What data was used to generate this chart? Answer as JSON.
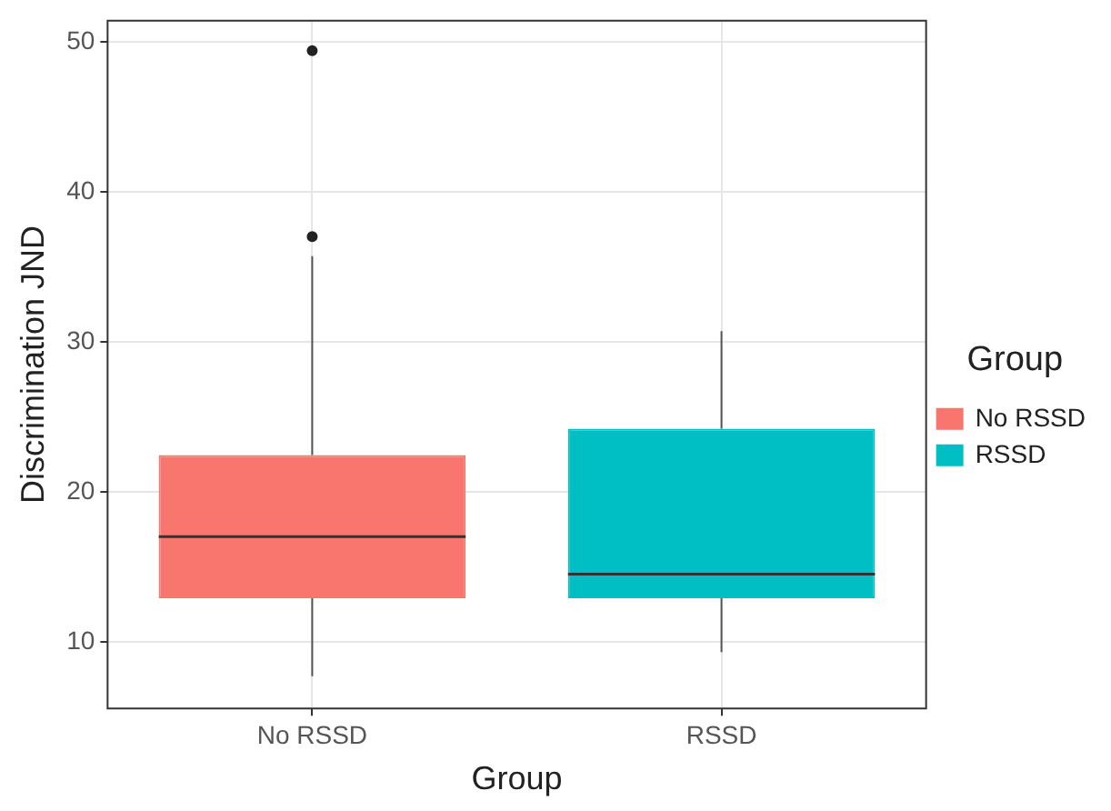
{
  "chart_data": {
    "type": "box",
    "xlabel": "Group",
    "ylabel": "Discrimination JND",
    "legend_title": "Group",
    "legend": "right",
    "grid": true,
    "categories": [
      "No RSSD",
      "RSSD"
    ],
    "series": [
      {
        "name": "No RSSD",
        "color": "#f8766d",
        "boxes": [
          {
            "low": 7.7,
            "q1": 12.9,
            "median": 17.0,
            "q3": 22.45,
            "high": 35.7,
            "outliers": [
              37.0,
              49.4
            ]
          },
          null
        ]
      },
      {
        "name": "RSSD",
        "color": "#00bfc4",
        "boxes": [
          null,
          {
            "low": 9.3,
            "q1": 12.9,
            "median": 14.5,
            "q3": 24.2,
            "high": 30.7
          }
        ]
      }
    ],
    "ylim": [
      5.55,
      51.4
    ],
    "yticks": [
      10,
      20,
      30,
      40,
      50
    ]
  }
}
